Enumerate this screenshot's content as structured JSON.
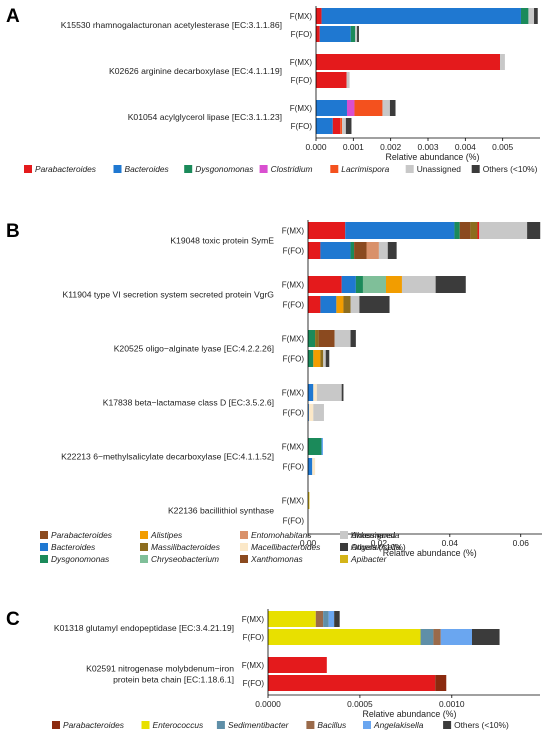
{
  "colors": {
    "Parabacteroides": "#e41a1c",
    "Bacteroides": "#1f78d1",
    "Dysgonomonas": "#1b8a5a",
    "Clostridium": "#d94fd0",
    "Lacrimispora": "#f4511e",
    "Unassigned": "#c8c8c8",
    "Others (<10%)": "#3b3b3b",
    "Alistipes": "#f29d00",
    "Massilibacteroides": "#8c6d1f",
    "Chryseobacterium": "#7fbf99",
    "Entomohabitans": "#d9916a",
    "Macellibacteroides": "#fbe8c8",
    "Xanthomonas": "#8b4a1f",
    "Akkermansia": "#c2b48a",
    "Angelakisella": "#5aa0f0",
    "Apibacter": "#d4b418",
    "Parabacteroides_C": "#8b2a0f",
    "Enterococcus": "#e8e000",
    "Sedimentibacter": "#5f8fa8",
    "Bacillus": "#9a6a4a",
    "Angelakisella_C": "#6aa6f0"
  },
  "chart_data": [
    {
      "panel": "A",
      "type": "bar",
      "orientation": "horizontal",
      "stacked": true,
      "xlabel": "Relative abundance (%)",
      "xlim": [
        0,
        0.006
      ],
      "xticks": [
        "0.000",
        "0.001",
        "0.002",
        "0.003",
        "0.004",
        "0.005"
      ],
      "xtick_values": [
        0,
        0.001,
        0.002,
        0.003,
        0.004,
        0.005
      ],
      "genes": [
        {
          "label": "K15530 rhamnogalacturonan acetylesterase [EC:3.1.1.86]",
          "bars": [
            {
              "group": "F(MX)",
              "segments": [
                [
                  "Parabacteroides",
                  0.00015
                ],
                [
                  "Bacteroides",
                  0.00534
                ],
                [
                  "Dysgonomonas",
                  0.0002
                ],
                [
                  "Unassigned",
                  0.00015
                ],
                [
                  "Others (<10%)",
                  0.0001
                ]
              ]
            },
            {
              "group": "F(FO)",
              "segments": [
                [
                  "Parabacteroides",
                  0.0001
                ],
                [
                  "Bacteroides",
                  0.00083
                ],
                [
                  "Dysgonomonas",
                  0.00012
                ],
                [
                  "Unassigned",
                  5e-05
                ],
                [
                  "Others (<10%)",
                  5e-05
                ]
              ]
            }
          ]
        },
        {
          "label": "K02626 arginine decarboxylase [EC:4.1.1.19]",
          "bars": [
            {
              "group": "F(MX)",
              "segments": [
                [
                  "Parabacteroides",
                  0.00493
                ],
                [
                  "Unassigned",
                  0.00013
                ]
              ]
            },
            {
              "group": "F(FO)",
              "segments": [
                [
                  "Parabacteroides",
                  0.00082
                ],
                [
                  "Unassigned",
                  8e-05
                ]
              ]
            }
          ]
        },
        {
          "label": "K01054 acylglycerol lipase [EC:3.1.1.23]",
          "bars": [
            {
              "group": "F(MX)",
              "segments": [
                [
                  "Bacteroides",
                  0.00083
                ],
                [
                  "Clostridium",
                  0.0002
                ],
                [
                  "Lacrimispora",
                  0.00075
                ],
                [
                  "Unassigned",
                  0.0002
                ],
                [
                  "Others (<10%)",
                  0.00015
                ]
              ]
            },
            {
              "group": "F(FO)",
              "segments": [
                [
                  "Bacteroides",
                  0.00045
                ],
                [
                  "Parabacteroides",
                  0.0002
                ],
                [
                  "Lacrimispora",
                  5e-05
                ],
                [
                  "Unassigned",
                  0.0001
                ],
                [
                  "Others (<10%)",
                  0.00015
                ]
              ]
            }
          ]
        }
      ],
      "legend": [
        {
          "name": "Parabacteroides",
          "italic": true
        },
        {
          "name": "Bacteroides",
          "italic": true
        },
        {
          "name": "Dysgonomonas",
          "italic": true
        },
        {
          "name": "Clostridium",
          "italic": true
        },
        {
          "name": "Lacrimispora",
          "italic": true
        },
        {
          "name": "Unassigned",
          "italic": false
        },
        {
          "name": "Others (<10%)",
          "italic": false
        }
      ]
    },
    {
      "panel": "B",
      "type": "bar",
      "orientation": "horizontal",
      "stacked": true,
      "xlabel": "Relative abundance (%)",
      "xlim": [
        0,
        0.066
      ],
      "xticks": [
        "0.00",
        "0.02",
        "0.04",
        "0.06"
      ],
      "xtick_values": [
        0,
        0.02,
        0.04,
        0.06
      ],
      "genes": [
        {
          "label": "K19048 toxic protein SymE",
          "bars": [
            {
              "group": "F(MX)",
              "segments": [
                [
                  "Parabacteroides",
                  0.0105
                ],
                [
                  "Bacteroides",
                  0.0308
                ],
                [
                  "Dysgonomonas",
                  0.0015
                ],
                [
                  "Xanthomonas",
                  0.003
                ],
                [
                  "Massilibacteroides",
                  0.002
                ],
                [
                  "Parabacteroides",
                  0.0005
                ],
                [
                  "Unassigned",
                  0.0135
                ],
                [
                  "Others (<10%)",
                  0.0037
                ]
              ]
            },
            {
              "group": "F(FO)",
              "segments": [
                [
                  "Parabacteroides",
                  0.0035
                ],
                [
                  "Bacteroides",
                  0.0085
                ],
                [
                  "Dysgonomonas",
                  0.001
                ],
                [
                  "Xanthomonas",
                  0.0035
                ],
                [
                  "Entomohabitans",
                  0.0035
                ],
                [
                  "Unassigned",
                  0.0025
                ],
                [
                  "Others (<10%)",
                  0.0025
                ]
              ]
            }
          ]
        },
        {
          "label": "K11904 type VI secretion system secreted protein VgrG",
          "bars": [
            {
              "group": "F(MX)",
              "segments": [
                [
                  "Parabacteroides",
                  0.0095
                ],
                [
                  "Bacteroides",
                  0.004
                ],
                [
                  "Dysgonomonas",
                  0.002
                ],
                [
                  "Chryseobacterium",
                  0.0065
                ],
                [
                  "Alistipes",
                  0.0045
                ],
                [
                  "Unassigned",
                  0.0095
                ],
                [
                  "Others (<10%)",
                  0.0085
                ]
              ]
            },
            {
              "group": "F(FO)",
              "segments": [
                [
                  "Parabacteroides",
                  0.0035
                ],
                [
                  "Bacteroides",
                  0.0045
                ],
                [
                  "Alistipes",
                  0.002
                ],
                [
                  "Massilibacteroides",
                  0.002
                ],
                [
                  "Unassigned",
                  0.0025
                ],
                [
                  "Others (<10%)",
                  0.0085
                ]
              ]
            }
          ]
        },
        {
          "label": "K20525 oligo−alginate lyase [EC:4.2.2.26]",
          "bars": [
            {
              "group": "F(MX)",
              "segments": [
                [
                  "Dysgonomonas",
                  0.002
                ],
                [
                  "Massilibacteroides",
                  0.001
                ],
                [
                  "Xanthomonas",
                  0.0045
                ],
                [
                  "Unassigned",
                  0.0045
                ],
                [
                  "Others (<10%)",
                  0.0015
                ]
              ]
            },
            {
              "group": "F(FO)",
              "segments": [
                [
                  "Dysgonomonas",
                  0.0015
                ],
                [
                  "Alistipes",
                  0.002
                ],
                [
                  "Massilibacteroides",
                  0.0008
                ],
                [
                  "Unassigned",
                  0.0007
                ],
                [
                  "Others (<10%)",
                  0.001
                ]
              ]
            }
          ]
        },
        {
          "label": "K17838 beta−lactamase class D [EC:3.5.2.6]",
          "bars": [
            {
              "group": "F(MX)",
              "segments": [
                [
                  "Bacteroides",
                  0.0015
                ],
                [
                  "Macellibacteroides",
                  0.001
                ],
                [
                  "Unassigned",
                  0.007
                ],
                [
                  "Others (<10%)",
                  0.0005
                ]
              ]
            },
            {
              "group": "F(FO)",
              "segments": [
                [
                  "Angelakisella",
                  0.0003
                ],
                [
                  "Macellibacteroides",
                  0.0012
                ],
                [
                  "Unassigned",
                  0.003
                ]
              ]
            }
          ]
        },
        {
          "label": "K22213 6−methylsalicylate decarboxylase [EC:4.1.1.52]",
          "bars": [
            {
              "group": "F(MX)",
              "segments": [
                [
                  "Dysgonomonas",
                  0.0038
                ],
                [
                  "Angelakisella",
                  0.0004
                ]
              ]
            },
            {
              "group": "F(FO)",
              "segments": [
                [
                  "Bacteroides",
                  0.0012
                ],
                [
                  "Macellibacteroides",
                  0.0008
                ]
              ]
            }
          ]
        },
        {
          "label": "K22136 bacillithiol synthase",
          "bars": [
            {
              "group": "F(MX)",
              "segments": [
                [
                  "Apibacter",
                  0.0004
                ]
              ]
            },
            {
              "group": "F(FO)",
              "segments": []
            }
          ]
        }
      ],
      "legend": [
        {
          "name": "Parabacteroides",
          "italic": true,
          "color_key": "Xanthomonas"
        },
        {
          "name": "Bacteroides",
          "italic": true,
          "color_key": "Bacteroides"
        },
        {
          "name": "Dysgonomonas",
          "italic": true,
          "color_key": "Dysgonomonas"
        },
        {
          "name": "Alistipes",
          "italic": true,
          "color_key": "Alistipes"
        },
        {
          "name": "Massilibacteroides",
          "italic": true,
          "color_key": "Massilibacteroides"
        },
        {
          "name": "Chryseobacterium",
          "italic": true,
          "color_key": "Chryseobacterium"
        },
        {
          "name": "Entomohabitans",
          "italic": true,
          "color_key": "Entomohabitans"
        },
        {
          "name": "Macellibacteroides",
          "italic": true,
          "color_key": "Macellibacteroides"
        },
        {
          "name": "Xanthomonas",
          "italic": true,
          "color_key": "Xanthomonas"
        },
        {
          "name": "Akkermansia",
          "italic": true,
          "color_key": "Akkermansia"
        },
        {
          "name": "Angelakisella",
          "italic": true,
          "color_key": "Angelakisella"
        },
        {
          "name": "Apibacter",
          "italic": true,
          "color_key": "Apibacter"
        },
        {
          "name": "Unassigned",
          "italic": false,
          "color_key": "Unassigned"
        },
        {
          "name": "Others (<10%)",
          "italic": false,
          "color_key": "Others (<10%)"
        }
      ]
    },
    {
      "panel": "C",
      "type": "bar",
      "orientation": "horizontal",
      "stacked": true,
      "xlabel": "Relative abundance (%)",
      "xlim": [
        0,
        0.00148
      ],
      "xticks": [
        "0.0000",
        "0.0005",
        "0.0010"
      ],
      "xtick_values": [
        0,
        0.0005,
        0.001
      ],
      "genes": [
        {
          "label": "K01318 glutamyl endopeptidase [EC:3.4.21.19]",
          "bars": [
            {
              "group": "F(MX)",
              "segments": [
                [
                  "Enterococcus",
                  0.00026
                ],
                [
                  "Bacillus",
                  4e-05
                ],
                [
                  "Sedimentibacter",
                  3e-05
                ],
                [
                  "Angelakisella_C",
                  3e-05
                ],
                [
                  "Others (<10%)",
                  3e-05
                ]
              ]
            },
            {
              "group": "F(FO)",
              "segments": [
                [
                  "Enterococcus",
                  0.00083
                ],
                [
                  "Sedimentibacter",
                  7e-05
                ],
                [
                  "Bacillus",
                  4e-05
                ],
                [
                  "Angelakisella_C",
                  0.00017
                ],
                [
                  "Others (<10%)",
                  0.00015
                ]
              ]
            }
          ]
        },
        {
          "label": "K02591 nitrogenase molybdenum−iron protein beta chain [EC:1.18.6.1]",
          "label_lines": [
            "K02591 nitrogenase molybdenum−iron",
            "protein beta chain [EC:1.18.6.1]"
          ],
          "bars": [
            {
              "group": "F(MX)",
              "segments": [
                [
                  "Parabacteroides",
                  0.00032
                ]
              ]
            },
            {
              "group": "F(FO)",
              "segments": [
                [
                  "Parabacteroides",
                  0.00091
                ],
                [
                  "Parabacteroides_C",
                  6e-05
                ]
              ]
            }
          ]
        }
      ],
      "legend": [
        {
          "name": "Parabacteroides",
          "italic": true,
          "color_key": "Parabacteroides_C"
        },
        {
          "name": "Enterococcus",
          "italic": true,
          "color_key": "Enterococcus"
        },
        {
          "name": "Sedimentibacter",
          "italic": true,
          "color_key": "Sedimentibacter"
        },
        {
          "name": "Bacillus",
          "italic": true,
          "color_key": "Bacillus"
        },
        {
          "name": "Angelakisella",
          "italic": true,
          "color_key": "Angelakisella_C"
        },
        {
          "name": "Others (<10%)",
          "italic": false,
          "color_key": "Others (<10%)"
        }
      ]
    }
  ]
}
